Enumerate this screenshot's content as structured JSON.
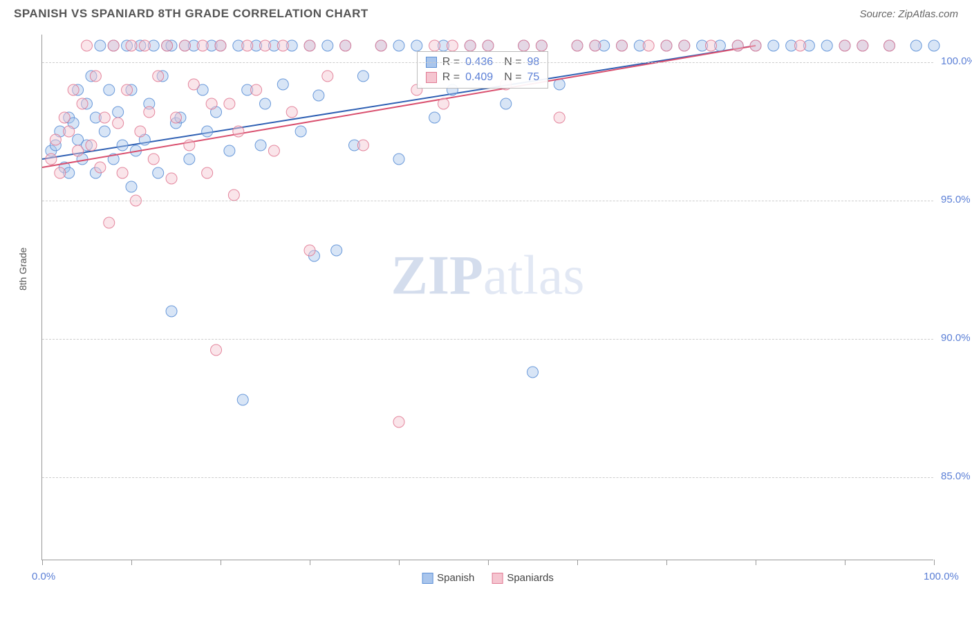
{
  "header": {
    "title": "SPANISH VS SPANIARD 8TH GRADE CORRELATION CHART",
    "source": "Source: ZipAtlas.com"
  },
  "chart": {
    "type": "scatter",
    "ylabel": "8th Grade",
    "label_fontsize": 14,
    "xlim": [
      0,
      100
    ],
    "ylim": [
      82,
      101
    ],
    "yticks": [
      85.0,
      90.0,
      95.0,
      100.0
    ],
    "ytick_labels": [
      "85.0%",
      "90.0%",
      "95.0%",
      "100.0%"
    ],
    "xticks": [
      0,
      10,
      20,
      30,
      40,
      50,
      60,
      70,
      80,
      90,
      100
    ],
    "xtick_labels_shown": {
      "0": "0.0%",
      "100": "100.0%"
    },
    "background_color": "#ffffff",
    "grid_color": "#cccccc",
    "marker_radius": 8,
    "marker_opacity": 0.45,
    "marker_stroke_opacity": 0.9,
    "series": [
      {
        "name": "Spanish",
        "color_fill": "#a9c5ec",
        "color_stroke": "#5b8fd6",
        "r_value": "0.436",
        "n_value": "98",
        "trend": {
          "x1": 0,
          "y1": 96.5,
          "x2": 80,
          "y2": 100.6,
          "color": "#2e5fb3",
          "width": 2
        },
        "points": [
          [
            1,
            96.8
          ],
          [
            1.5,
            97.0
          ],
          [
            2,
            97.5
          ],
          [
            2.5,
            96.2
          ],
          [
            3,
            98.0
          ],
          [
            3,
            96.0
          ],
          [
            3.5,
            97.8
          ],
          [
            4,
            99.0
          ],
          [
            4,
            97.2
          ],
          [
            4.5,
            96.5
          ],
          [
            5,
            98.5
          ],
          [
            5,
            97.0
          ],
          [
            5.5,
            99.5
          ],
          [
            6,
            96.0
          ],
          [
            6,
            98.0
          ],
          [
            6.5,
            100.6
          ],
          [
            7,
            97.5
          ],
          [
            7.5,
            99.0
          ],
          [
            8,
            100.6
          ],
          [
            8,
            96.5
          ],
          [
            8.5,
            98.2
          ],
          [
            9,
            97.0
          ],
          [
            9.5,
            100.6
          ],
          [
            10,
            99.0
          ],
          [
            10,
            95.5
          ],
          [
            10.5,
            96.8
          ],
          [
            11,
            100.6
          ],
          [
            11.5,
            97.2
          ],
          [
            12,
            98.5
          ],
          [
            12.5,
            100.6
          ],
          [
            13,
            96.0
          ],
          [
            13.5,
            99.5
          ],
          [
            14,
            100.6
          ],
          [
            14.5,
            100.6
          ],
          [
            14.5,
            91.0
          ],
          [
            15,
            97.8
          ],
          [
            15.5,
            98.0
          ],
          [
            16,
            100.6
          ],
          [
            16.5,
            96.5
          ],
          [
            17,
            100.6
          ],
          [
            18,
            99.0
          ],
          [
            18.5,
            97.5
          ],
          [
            19,
            100.6
          ],
          [
            19.5,
            98.2
          ],
          [
            20,
            100.6
          ],
          [
            21,
            96.8
          ],
          [
            22,
            100.6
          ],
          [
            22.5,
            87.8
          ],
          [
            23,
            99.0
          ],
          [
            24,
            100.6
          ],
          [
            24.5,
            97.0
          ],
          [
            25,
            98.5
          ],
          [
            26,
            100.6
          ],
          [
            27,
            99.2
          ],
          [
            28,
            100.6
          ],
          [
            29,
            97.5
          ],
          [
            30,
            100.6
          ],
          [
            30.5,
            93.0
          ],
          [
            31,
            98.8
          ],
          [
            32,
            100.6
          ],
          [
            33,
            93.2
          ],
          [
            34,
            100.6
          ],
          [
            35,
            97.0
          ],
          [
            36,
            99.5
          ],
          [
            38,
            100.6
          ],
          [
            40,
            100.6
          ],
          [
            40,
            96.5
          ],
          [
            42,
            100.6
          ],
          [
            44,
            98.0
          ],
          [
            45,
            100.6
          ],
          [
            46,
            99.0
          ],
          [
            48,
            100.6
          ],
          [
            50,
            100.6
          ],
          [
            52,
            98.5
          ],
          [
            54,
            100.6
          ],
          [
            55,
            88.8
          ],
          [
            56,
            100.6
          ],
          [
            58,
            99.2
          ],
          [
            60,
            100.6
          ],
          [
            62,
            100.6
          ],
          [
            63,
            100.6
          ],
          [
            65,
            100.6
          ],
          [
            67,
            100.6
          ],
          [
            70,
            100.6
          ],
          [
            72,
            100.6
          ],
          [
            74,
            100.6
          ],
          [
            76,
            100.6
          ],
          [
            78,
            100.6
          ],
          [
            80,
            100.6
          ],
          [
            82,
            100.6
          ],
          [
            84,
            100.6
          ],
          [
            86,
            100.6
          ],
          [
            88,
            100.6
          ],
          [
            90,
            100.6
          ],
          [
            92,
            100.6
          ],
          [
            95,
            100.6
          ],
          [
            98,
            100.6
          ],
          [
            100,
            100.6
          ]
        ]
      },
      {
        "name": "Spaniards",
        "color_fill": "#f5c5d0",
        "color_stroke": "#e17a94",
        "r_value": "0.409",
        "n_value": "75",
        "trend": {
          "x1": 0,
          "y1": 96.2,
          "x2": 80,
          "y2": 100.6,
          "color": "#d94f6e",
          "width": 2
        },
        "points": [
          [
            1,
            96.5
          ],
          [
            1.5,
            97.2
          ],
          [
            2,
            96.0
          ],
          [
            2.5,
            98.0
          ],
          [
            3,
            97.5
          ],
          [
            3.5,
            99.0
          ],
          [
            4,
            96.8
          ],
          [
            4.5,
            98.5
          ],
          [
            5,
            100.6
          ],
          [
            5.5,
            97.0
          ],
          [
            6,
            99.5
          ],
          [
            6.5,
            96.2
          ],
          [
            7,
            98.0
          ],
          [
            7.5,
            94.2
          ],
          [
            8,
            100.6
          ],
          [
            8.5,
            97.8
          ],
          [
            9,
            96.0
          ],
          [
            9.5,
            99.0
          ],
          [
            10,
            100.6
          ],
          [
            10.5,
            95.0
          ],
          [
            11,
            97.5
          ],
          [
            11.5,
            100.6
          ],
          [
            12,
            98.2
          ],
          [
            12.5,
            96.5
          ],
          [
            13,
            99.5
          ],
          [
            14,
            100.6
          ],
          [
            14.5,
            95.8
          ],
          [
            15,
            98.0
          ],
          [
            16,
            100.6
          ],
          [
            16.5,
            97.0
          ],
          [
            17,
            99.2
          ],
          [
            18,
            100.6
          ],
          [
            18.5,
            96.0
          ],
          [
            19,
            98.5
          ],
          [
            19.5,
            89.6
          ],
          [
            20,
            100.6
          ],
          [
            21,
            98.5
          ],
          [
            21.5,
            95.2
          ],
          [
            22,
            97.5
          ],
          [
            23,
            100.6
          ],
          [
            24,
            99.0
          ],
          [
            25,
            100.6
          ],
          [
            26,
            96.8
          ],
          [
            27,
            100.6
          ],
          [
            28,
            98.2
          ],
          [
            30,
            100.6
          ],
          [
            30,
            93.2
          ],
          [
            32,
            99.5
          ],
          [
            34,
            100.6
          ],
          [
            36,
            97.0
          ],
          [
            38,
            100.6
          ],
          [
            40,
            87.0
          ],
          [
            42,
            99.0
          ],
          [
            44,
            100.6
          ],
          [
            45,
            98.5
          ],
          [
            46,
            100.6
          ],
          [
            48,
            100.6
          ],
          [
            50,
            100.6
          ],
          [
            52,
            99.2
          ],
          [
            54,
            100.6
          ],
          [
            56,
            100.6
          ],
          [
            58,
            98.0
          ],
          [
            60,
            100.6
          ],
          [
            62,
            100.6
          ],
          [
            65,
            100.6
          ],
          [
            68,
            100.6
          ],
          [
            70,
            100.6
          ],
          [
            72,
            100.6
          ],
          [
            75,
            100.6
          ],
          [
            78,
            100.6
          ],
          [
            80,
            100.6
          ],
          [
            85,
            100.6
          ],
          [
            90,
            100.6
          ],
          [
            92,
            100.6
          ],
          [
            95,
            100.6
          ]
        ]
      }
    ],
    "legend_bottom": [
      {
        "label": "Spanish",
        "fill": "#a9c5ec",
        "stroke": "#5b8fd6"
      },
      {
        "label": "Spaniards",
        "fill": "#f5c5d0",
        "stroke": "#e17a94"
      }
    ],
    "correlation_box": {
      "rows": [
        {
          "swatch_fill": "#a9c5ec",
          "swatch_stroke": "#5b8fd6",
          "r_label": "R =",
          "r_val": "0.436",
          "n_label": "N =",
          "n_val": "98"
        },
        {
          "swatch_fill": "#f5c5d0",
          "swatch_stroke": "#e17a94",
          "r_label": "R =",
          "r_val": "0.409",
          "n_label": "N =",
          "n_val": "75"
        }
      ]
    },
    "watermark": {
      "zip": "ZIP",
      "atlas": "atlas"
    }
  }
}
